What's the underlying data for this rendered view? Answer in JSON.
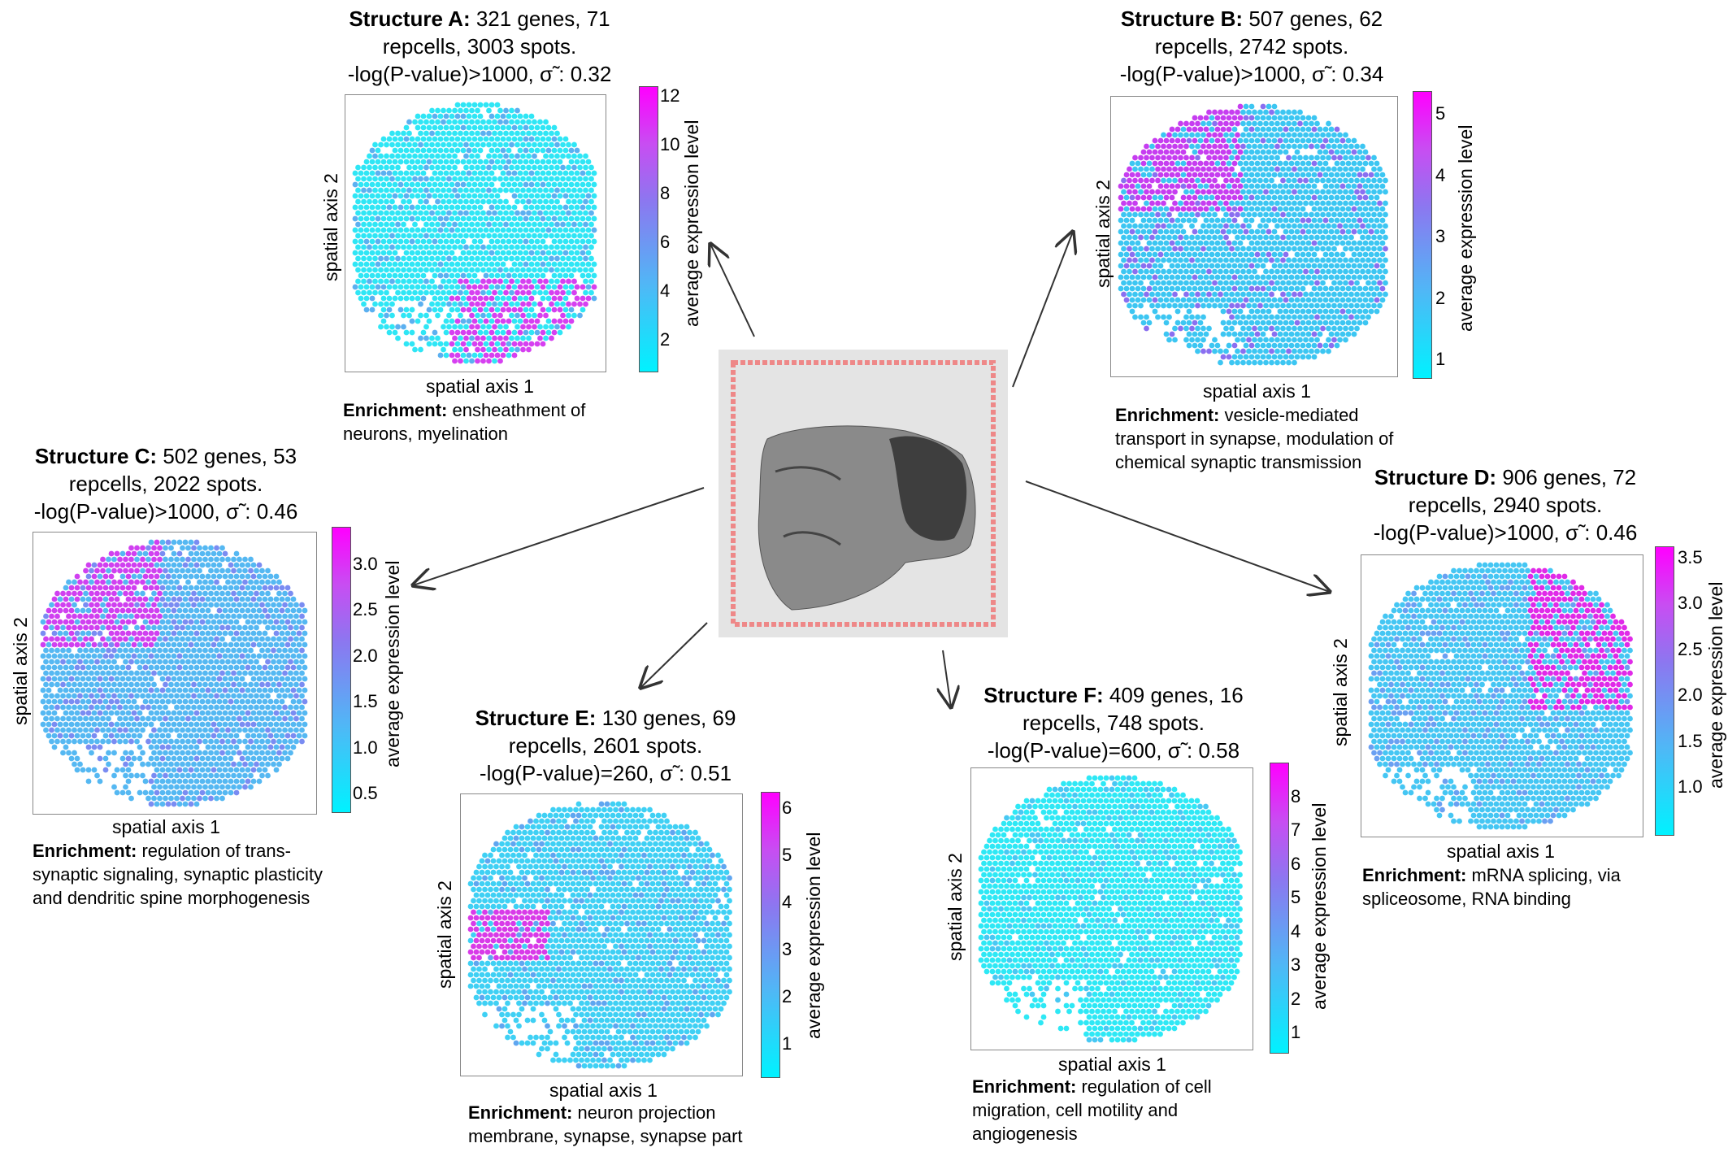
{
  "structures": [
    {
      "id": "A",
      "title_bold": "Structure A:",
      "title_rest": " 321 genes, 71 repcells, 3003 spots.",
      "title_line3": "-log(P-value)>1000, σ̃ : 0.32",
      "cbar_ticks": [
        "12",
        "10",
        "8",
        "6",
        "4",
        "2"
      ],
      "cbar_label": "average expression level",
      "xlabel": "spatial axis 1",
      "ylabel": "spatial axis 2",
      "enrich_bold": "Enrichment:",
      "enrich_text": " ensheathment of neurons, myelination",
      "colors": {
        "base": "#2fe6f5",
        "mid": "#5bb0f0",
        "hi": "#d640f0"
      }
    },
    {
      "id": "B",
      "title_bold": "Structure B:",
      "title_rest": " 507 genes, 62 repcells, 2742 spots.",
      "title_line3": "-log(P-value)>1000, σ̃ : 0.34",
      "cbar_ticks": [
        "5",
        "4",
        "3",
        "2",
        "1"
      ],
      "cbar_label": "average expression level",
      "xlabel": "spatial axis 1",
      "ylabel": "spatial axis 2",
      "enrich_bold": "Enrichment:",
      "enrich_text": " vesicle-mediated transport in synapse, modulation of chemical synaptic transmission",
      "colors": {
        "base": "#3cc6f2",
        "mid": "#8a6ff0",
        "hi": "#c63df0"
      }
    },
    {
      "id": "C",
      "title_bold": "Structure C:",
      "title_rest": " 502 genes, 53 repcells, 2022 spots.",
      "title_line3": "-log(P-value)>1000, σ̃ : 0.46",
      "cbar_ticks": [
        "3.0",
        "2.5",
        "2.0",
        "1.5",
        "1.0",
        "0.5"
      ],
      "cbar_label": "average expression level",
      "xlabel": "spatial axis 1",
      "ylabel": "spatial axis 2",
      "enrich_bold": "Enrichment:",
      "enrich_text": " regulation of trans-synaptic signaling, synaptic plasticity and dendritic spine morphogenesis",
      "colors": {
        "base": "#55b8f2",
        "mid": "#7a8cf2",
        "hi": "#d040f0"
      }
    },
    {
      "id": "D",
      "title_bold": "Structure D:",
      "title_rest": " 906 genes, 72 repcells, 2940 spots.",
      "title_line3": "-log(P-value)>1000, σ̃ : 0.46",
      "cbar_ticks": [
        "3.5",
        "3.0",
        "2.5",
        "2.0",
        "1.5",
        "1.0"
      ],
      "cbar_label": "average expression level",
      "xlabel": "spatial axis 1",
      "ylabel": "spatial axis 2",
      "enrich_bold": "Enrichment:",
      "enrich_text": " mRNA splicing, via spliceosome, RNA binding",
      "colors": {
        "base": "#45c6f3",
        "mid": "#6aa0f2",
        "hi": "#e02ae8"
      }
    },
    {
      "id": "E",
      "title_bold": "Structure E:",
      "title_rest": " 130 genes, 69 repcells, 2601 spots.",
      "title_line3": "-log(P-value)=260, σ̃ : 0.51",
      "cbar_ticks": [
        "6",
        "5",
        "4",
        "3",
        "2",
        "1"
      ],
      "cbar_label": "average expression level",
      "xlabel": "spatial axis 1",
      "ylabel": "spatial axis 2",
      "enrich_bold": "Enrichment:",
      "enrich_text": " neuron projection membrane, synapse, synapse part",
      "colors": {
        "base": "#3fd0f4",
        "mid": "#5fa6f0",
        "hi": "#d83ae8"
      }
    },
    {
      "id": "F",
      "title_bold": "Structure F:",
      "title_rest": " 409 genes, 16 repcells, 748 spots.",
      "title_line3": "-log(P-value)=600, σ̃ : 0.58",
      "cbar_ticks": [
        "8",
        "7",
        "6",
        "5",
        "4",
        "3",
        "2",
        "1"
      ],
      "cbar_label": "average expression level",
      "xlabel": "spatial axis 1",
      "ylabel": "spatial axis 2",
      "enrich_bold": "Enrichment:",
      "enrich_text": " regulation of cell migration, cell motility and angiogenesis",
      "colors": {
        "base": "#2ee8f5",
        "mid": "#48c8f3",
        "hi": "#8a70ee"
      }
    }
  ]
}
